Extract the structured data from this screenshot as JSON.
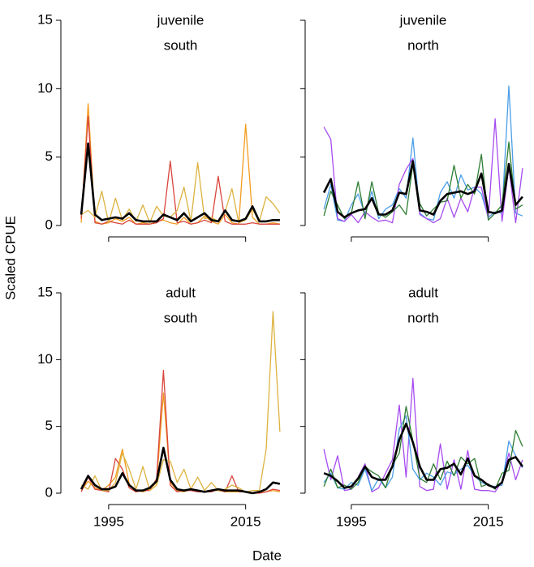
{
  "chart_data": {
    "type": "line",
    "xlabel": "Date",
    "ylabel": "Scaled CPUE",
    "x": [
      1991,
      1992,
      1993,
      1994,
      1995,
      1996,
      1997,
      1998,
      1999,
      2000,
      2001,
      2002,
      2003,
      2004,
      2005,
      2006,
      2007,
      2008,
      2009,
      2010,
      2011,
      2012,
      2013,
      2014,
      2015,
      2016,
      2017,
      2018,
      2019,
      2020
    ],
    "xlim": [
      1989.8,
      2021.2
    ],
    "xticks": [
      1995,
      2015
    ],
    "ylim": [
      0,
      15
    ],
    "yticks": [
      0,
      5,
      10,
      15
    ],
    "panels": [
      {
        "stage": "juvenile",
        "region": "south",
        "series": [
          {
            "color": "#f39c1f",
            "linewidth": 1.3,
            "values": [
              0.2,
              8.9,
              0.3,
              0.1,
              0.2,
              0.5,
              0.3,
              0.6,
              0.1,
              0.2,
              0.1,
              0.3,
              0.4,
              0.2,
              0.1,
              0.6,
              0.1,
              0.2,
              0.7,
              0.3,
              0.1,
              0.8,
              0.2,
              0.1,
              7.4,
              0.6,
              0.1,
              0.1,
              0.2,
              0.1
            ]
          },
          {
            "color": "#d9453c",
            "linewidth": 1.3,
            "values": [
              0.5,
              8.0,
              0.2,
              0.1,
              0.3,
              0.2,
              0.1,
              0.4,
              0.1,
              0.1,
              0.1,
              0.2,
              0.5,
              4.7,
              0.2,
              0.3,
              0.1,
              0.2,
              0.4,
              0.2,
              3.6,
              0.3,
              0.1,
              0.1,
              0.1,
              0.2,
              0.1,
              0.1,
              0.1,
              0.1
            ]
          },
          {
            "color": "#dcb23e",
            "linewidth": 1.3,
            "values": [
              0.8,
              1.1,
              0.6,
              2.5,
              0.2,
              2.0,
              0.4,
              1.2,
              0.3,
              1.5,
              0.2,
              1.4,
              0.7,
              0.6,
              1.1,
              2.8,
              0.3,
              4.6,
              0.5,
              0.6,
              0.3,
              1.0,
              2.7,
              0.2,
              0.4,
              1.2,
              0.3,
              2.1,
              1.6,
              0.9
            ]
          },
          {
            "color": "#000000",
            "linewidth": 2.6,
            "values": [
              0.8,
              6.0,
              0.8,
              0.4,
              0.5,
              0.6,
              0.5,
              0.9,
              0.4,
              0.3,
              0.3,
              0.3,
              0.8,
              0.6,
              0.4,
              0.9,
              0.3,
              0.6,
              0.9,
              0.4,
              0.3,
              1.1,
              0.4,
              0.3,
              0.5,
              1.4,
              0.3,
              0.3,
              0.4,
              0.4
            ]
          }
        ]
      },
      {
        "stage": "juvenile",
        "region": "north",
        "series": [
          {
            "color": "#4a9ee8",
            "linewidth": 1.3,
            "values": [
              1.2,
              3.0,
              0.4,
              0.3,
              1.5,
              2.3,
              0.8,
              2.5,
              0.5,
              1.2,
              1.5,
              2.7,
              2.0,
              6.4,
              0.9,
              0.5,
              0.4,
              2.4,
              3.2,
              2.0,
              3.7,
              2.6,
              2.8,
              2.3,
              0.6,
              1.0,
              0.9,
              10.2,
              0.9,
              0.7
            ]
          },
          {
            "color": "#a64bf0",
            "linewidth": 1.3,
            "values": [
              7.2,
              6.3,
              0.5,
              0.3,
              0.8,
              0.2,
              1.0,
              0.6,
              0.3,
              0.4,
              0.2,
              3.0,
              4.1,
              4.9,
              0.8,
              0.5,
              0.2,
              0.5,
              2.0,
              0.6,
              2.0,
              1.0,
              2.8,
              2.8,
              0.5,
              7.8,
              0.3,
              4.3,
              0.2,
              4.2
            ]
          },
          {
            "color": "#2e7d32",
            "linewidth": 1.3,
            "values": [
              0.7,
              2.5,
              1.5,
              0.5,
              0.9,
              3.2,
              0.5,
              3.2,
              0.9,
              0.6,
              1.0,
              1.5,
              0.8,
              4.5,
              1.6,
              0.7,
              1.2,
              1.7,
              1.8,
              4.4,
              2.0,
              3.0,
              2.3,
              5.2,
              0.4,
              0.9,
              1.5,
              6.1,
              1.2,
              1.5
            ]
          },
          {
            "color": "#000000",
            "linewidth": 2.6,
            "values": [
              2.4,
              3.4,
              1.0,
              0.6,
              0.9,
              1.1,
              1.2,
              2.0,
              0.8,
              0.8,
              1.1,
              2.4,
              2.3,
              4.7,
              1.1,
              1.0,
              0.8,
              1.8,
              2.3,
              2.4,
              2.5,
              2.3,
              2.5,
              3.8,
              1.0,
              0.9,
              1.1,
              4.5,
              1.5,
              2.1
            ]
          }
        ]
      },
      {
        "stage": "adult",
        "region": "south",
        "series": [
          {
            "color": "#f39c1f",
            "linewidth": 1.3,
            "values": [
              0.2,
              0.9,
              0.4,
              0.2,
              0.6,
              1.2,
              3.3,
              0.7,
              0.2,
              0.1,
              0.3,
              0.8,
              7.5,
              0.8,
              0.2,
              0.1,
              0.3,
              0.1,
              0.1,
              0.2,
              0.2,
              0.1,
              0.1,
              0.1,
              0.1,
              0.0,
              0.1,
              0.1,
              0.2,
              0.1
            ]
          },
          {
            "color": "#d9453c",
            "linewidth": 1.3,
            "values": [
              0.1,
              1.2,
              0.3,
              0.2,
              0.1,
              2.6,
              1.8,
              0.4,
              0.1,
              0.2,
              0.2,
              1.1,
              9.2,
              0.6,
              0.1,
              0.2,
              0.2,
              0.1,
              0.1,
              0.1,
              0.3,
              0.1,
              1.3,
              0.1,
              0.1,
              0.0,
              0.0,
              0.1,
              0.3,
              0.2
            ]
          },
          {
            "color": "#dcb23e",
            "linewidth": 1.3,
            "values": [
              0.6,
              0.3,
              1.3,
              0.2,
              0.2,
              0.8,
              3.0,
              1.8,
              0.3,
              2.0,
              0.2,
              0.6,
              2.5,
              2.4,
              0.8,
              1.8,
              0.3,
              1.2,
              0.2,
              0.8,
              0.2,
              0.3,
              0.6,
              0.4,
              0.1,
              0.2,
              0.2,
              3.3,
              13.6,
              4.6
            ]
          },
          {
            "color": "#000000",
            "linewidth": 2.6,
            "values": [
              0.3,
              1.3,
              0.6,
              0.3,
              0.3,
              0.5,
              1.5,
              0.6,
              0.2,
              0.2,
              0.4,
              0.9,
              3.4,
              1.0,
              0.3,
              0.2,
              0.3,
              0.2,
              0.1,
              0.2,
              0.3,
              0.2,
              0.2,
              0.2,
              0.1,
              0.0,
              0.1,
              0.3,
              0.8,
              0.7
            ]
          }
        ]
      },
      {
        "stage": "adult",
        "region": "north",
        "series": [
          {
            "color": "#a64bf0",
            "linewidth": 1.3,
            "values": [
              3.3,
              1.0,
              2.8,
              0.2,
              0.3,
              1.2,
              2.2,
              0.1,
              0.4,
              1.5,
              2.5,
              6.6,
              1.2,
              8.6,
              0.5,
              0.2,
              0.3,
              3.7,
              0.3,
              2.5,
              0.3,
              3.2,
              0.3,
              0.2,
              0.2,
              0.1,
              0.9,
              3.0,
              1.0,
              2.5
            ]
          },
          {
            "color": "#4a9ee8",
            "linewidth": 1.3,
            "values": [
              0.8,
              1.5,
              0.4,
              0.3,
              0.8,
              0.6,
              1.8,
              0.2,
              1.1,
              0.4,
              1.2,
              4.8,
              5.8,
              1.8,
              1.0,
              1.5,
              1.2,
              0.6,
              1.6,
              1.4,
              1.8,
              2.1,
              1.3,
              0.8,
              0.6,
              0.5,
              0.6,
              3.9,
              2.8,
              1.9
            ]
          },
          {
            "color": "#2e7d32",
            "linewidth": 1.3,
            "values": [
              0.5,
              1.8,
              0.4,
              0.6,
              0.3,
              0.8,
              2.0,
              1.6,
              1.3,
              0.4,
              2.1,
              3.0,
              6.5,
              3.9,
              1.1,
              0.8,
              2.2,
              1.0,
              2.4,
              1.3,
              2.7,
              2.2,
              2.6,
              0.5,
              0.7,
              0.3,
              1.5,
              1.7,
              4.7,
              3.5
            ]
          },
          {
            "color": "#000000",
            "linewidth": 2.6,
            "values": [
              1.5,
              1.3,
              0.9,
              0.4,
              0.5,
              1.1,
              2.0,
              1.2,
              1.0,
              1.0,
              2.0,
              4.0,
              5.2,
              3.8,
              2.0,
              1.0,
              1.0,
              1.8,
              1.9,
              2.2,
              1.4,
              2.6,
              1.3,
              1.0,
              0.6,
              0.4,
              0.8,
              2.5,
              2.7,
              2.0
            ]
          }
        ]
      }
    ]
  }
}
